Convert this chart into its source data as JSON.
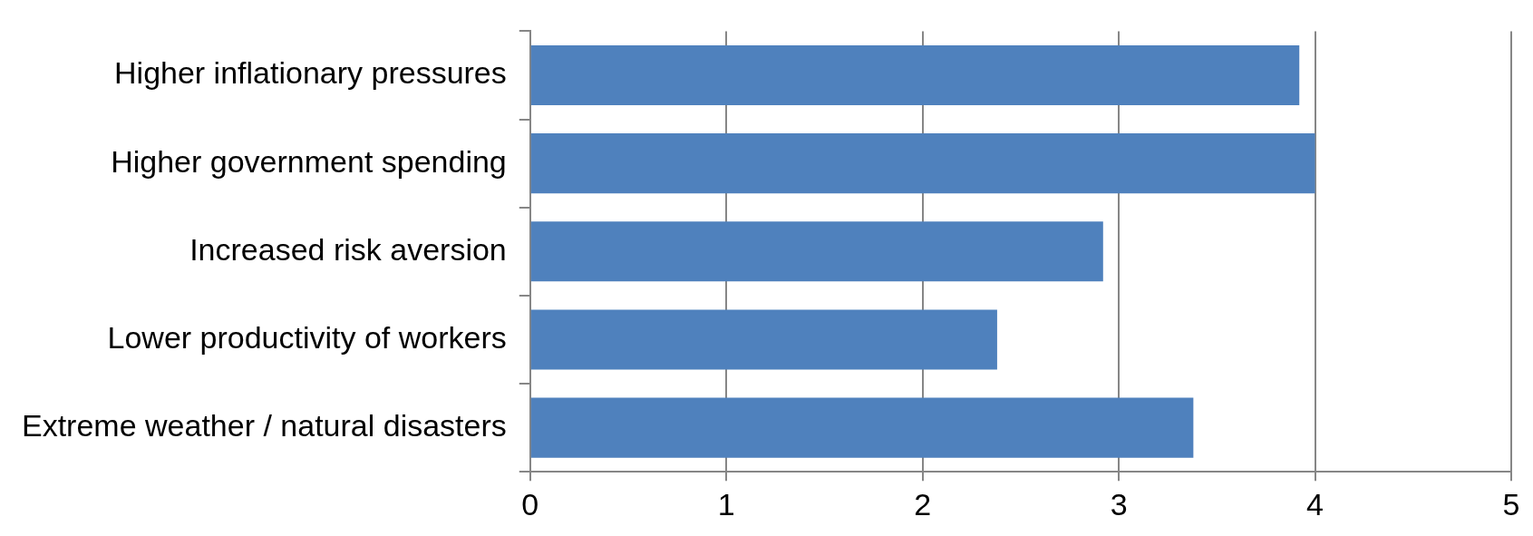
{
  "chart_data": {
    "type": "bar",
    "orientation": "horizontal",
    "categories": [
      "Higher inflationary pressures",
      "Higher government spending",
      "Increased risk aversion",
      "Lower productivity of workers",
      "Extreme weather / natural disasters"
    ],
    "values": [
      3.92,
      4.0,
      2.92,
      2.38,
      3.38
    ],
    "color": "#4f81bd",
    "xlim": [
      0,
      5
    ],
    "xticks": [
      0,
      1,
      2,
      3,
      4,
      5
    ],
    "grid": "x",
    "legend": false
  }
}
